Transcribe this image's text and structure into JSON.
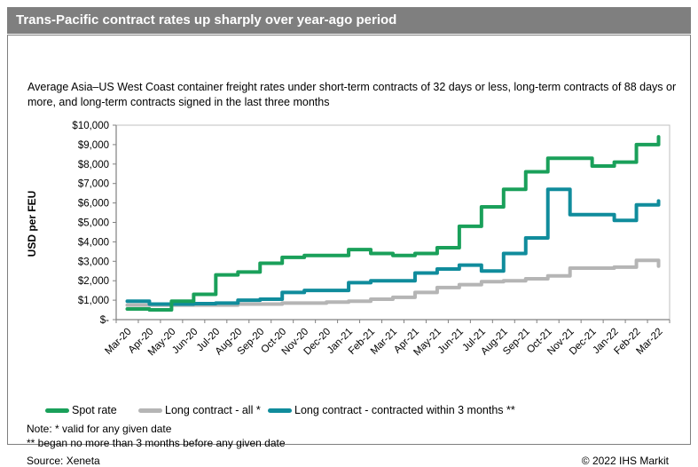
{
  "header": {
    "title": "Trans-Pacific contract rates up sharply over year-ago period"
  },
  "subtitle": "Average Asia–US West Coast container freight rates under short-term contracts of 32 days or less, long-term contracts of 88 days or more, and long-term contracts signed in the last three months",
  "chart_data": {
    "type": "line",
    "title": "",
    "xlabel": "",
    "ylabel": "USD per FEU",
    "ylim": [
      0,
      10000
    ],
    "ytick_step": 1000,
    "ytick_labels": [
      "$-",
      "$1,000",
      "$2,000",
      "$3,000",
      "$4,000",
      "$5,000",
      "$6,000",
      "$7,000",
      "$8,000",
      "$9,000",
      "$10,000"
    ],
    "grid": false,
    "legend_position": "bottom",
    "x": [
      "Mar-20",
      "Apr-20",
      "May-20",
      "Jun-20",
      "Jul-20",
      "Aug-20",
      "Sep-20",
      "Oct-20",
      "Nov-20",
      "Dec-20",
      "Jan-21",
      "Feb-21",
      "Mar-21",
      "Apr-21",
      "May-21",
      "Jun-21",
      "Jul-21",
      "Aug-21",
      "Sep-21",
      "Oct-21",
      "Nov-21",
      "Dec-21",
      "Jan-22",
      "Feb-22",
      "Mar-22"
    ],
    "series": [
      {
        "name": "Spot rate",
        "color": "#1AA05A",
        "values": [
          550,
          500,
          950,
          1300,
          2300,
          2450,
          2900,
          3200,
          3300,
          3300,
          3600,
          3400,
          3300,
          3400,
          3700,
          4800,
          5800,
          6700,
          7600,
          8300,
          8300,
          7900,
          8100,
          9000,
          9400
        ]
      },
      {
        "name": "Long contract - all *",
        "color": "#B5B5B5",
        "values": [
          750,
          750,
          750,
          750,
          750,
          800,
          800,
          850,
          850,
          900,
          950,
          1050,
          1150,
          1400,
          1650,
          1800,
          1950,
          2000,
          2100,
          2250,
          2650,
          2650,
          2700,
          3050,
          2750
        ]
      },
      {
        "name": "Long contract - contracted within 3 months **",
        "color": "#108C9C",
        "values": [
          950,
          800,
          800,
          820,
          850,
          1000,
          1050,
          1400,
          1500,
          1500,
          1900,
          2000,
          2000,
          2400,
          2600,
          2800,
          2500,
          3400,
          4200,
          6700,
          5400,
          5400,
          5100,
          5900,
          6100
        ]
      }
    ]
  },
  "notes": {
    "line1": "Note: * valid for any given date",
    "line2": "** began no more than 3 months before any given date",
    "source": "Source: Xeneta"
  },
  "footer": {
    "copyright": "© 2022 IHS Markit"
  }
}
